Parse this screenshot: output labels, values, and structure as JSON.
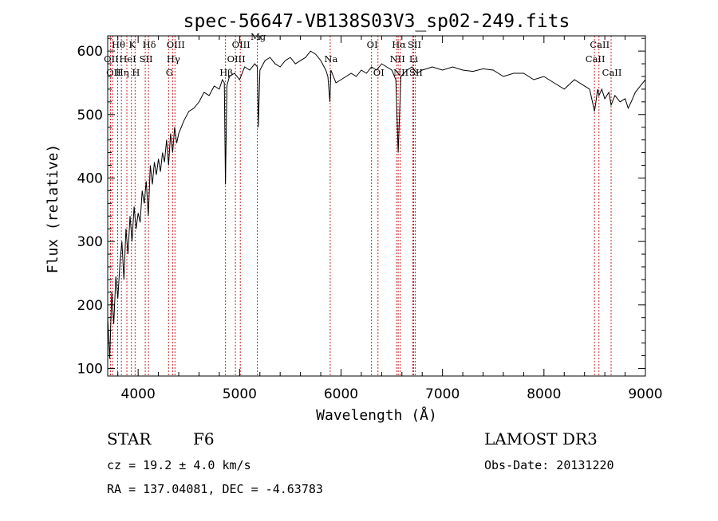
{
  "chart_data": {
    "type": "line",
    "title": "spec-56647-VB138S03V3_sp02-249.fits",
    "xlabel": "Wavelength (Å)",
    "ylabel": "Flux (relative)",
    "xlim": [
      3700,
      9000
    ],
    "ylim": [
      88,
      624
    ],
    "x_ticks": [
      4000,
      5000,
      6000,
      7000,
      8000,
      9000
    ],
    "y_ticks": [
      100,
      200,
      300,
      400,
      500,
      600
    ],
    "grid": false,
    "line_color": "#000000",
    "marker_color": "#c8262a",
    "series": [
      {
        "x": [
          3700,
          3720,
          3740,
          3760,
          3780,
          3800,
          3820,
          3840,
          3860,
          3880,
          3900,
          3920,
          3940,
          3960,
          3980,
          4000,
          4020,
          4040,
          4060,
          4080,
          4100,
          4120,
          4140,
          4160,
          4180,
          4200,
          4220,
          4240,
          4260,
          4280,
          4300,
          4320,
          4340,
          4360,
          4380,
          4400,
          4450,
          4500,
          4550,
          4600,
          4650,
          4700,
          4750,
          4800,
          4830,
          4850,
          4861,
          4875,
          4900,
          4950,
          5000,
          5050,
          5100,
          5150,
          5175,
          5185,
          5200,
          5250,
          5300,
          5350,
          5400,
          5450,
          5500,
          5550,
          5600,
          5650,
          5700,
          5750,
          5800,
          5850,
          5870,
          5890,
          5900,
          5950,
          6000,
          6050,
          6100,
          6150,
          6200,
          6250,
          6300,
          6350,
          6400,
          6450,
          6500,
          6540,
          6563,
          6590,
          6620,
          6650,
          6700,
          6750,
          6800,
          6900,
          7000,
          7100,
          7200,
          7300,
          7400,
          7500,
          7600,
          7700,
          7800,
          7900,
          8000,
          8100,
          8200,
          8300,
          8400,
          8450,
          8498,
          8530,
          8542,
          8570,
          8600,
          8640,
          8662,
          8700,
          8750,
          8800,
          8830,
          8860,
          8900,
          8950,
          9000
        ],
        "y": [
          180,
          115,
          220,
          170,
          245,
          210,
          265,
          300,
          240,
          320,
          280,
          340,
          300,
          355,
          320,
          345,
          330,
          380,
          360,
          395,
          340,
          420,
          390,
          425,
          405,
          430,
          410,
          440,
          425,
          460,
          420,
          470,
          440,
          480,
          455,
          470,
          490,
          505,
          510,
          520,
          535,
          530,
          545,
          540,
          555,
          550,
          390,
          545,
          560,
          565,
          555,
          575,
          570,
          580,
          575,
          480,
          570,
          585,
          590,
          580,
          575,
          585,
          590,
          580,
          585,
          590,
          600,
          595,
          585,
          570,
          560,
          520,
          570,
          550,
          555,
          560,
          565,
          560,
          570,
          565,
          575,
          570,
          580,
          575,
          570,
          555,
          440,
          560,
          565,
          570,
          575,
          565,
          570,
          575,
          570,
          575,
          570,
          568,
          572,
          570,
          560,
          565,
          565,
          555,
          560,
          550,
          540,
          555,
          545,
          540,
          505,
          540,
          530,
          540,
          525,
          535,
          515,
          530,
          520,
          525,
          510,
          520,
          535,
          545,
          555
        ]
      }
    ],
    "spectral_lines": [
      {
        "wl": 3727,
        "label": "OII",
        "row": 2
      },
      {
        "wl": 3750,
        "label": "OII",
        "row": 3
      },
      {
        "wl": 3798,
        "label": "Hθ",
        "row": 1
      },
      {
        "wl": 3835,
        "label": "Hη",
        "row": 3
      },
      {
        "wl": 3889,
        "label": "HeI",
        "row": 2
      },
      {
        "wl": 3934,
        "label": "K",
        "row": 1
      },
      {
        "wl": 3970,
        "label": "H",
        "row": 3
      },
      {
        "wl": 4070,
        "label": "SII",
        "row": 2
      },
      {
        "wl": 4102,
        "label": "Hδ",
        "row": 1
      },
      {
        "wl": 4300,
        "label": "G",
        "row": 3
      },
      {
        "wl": 4340,
        "label": "Hγ",
        "row": 2
      },
      {
        "wl": 4363,
        "label": "OIII",
        "row": 1
      },
      {
        "wl": 4861,
        "label": "Hβ",
        "row": 3
      },
      {
        "wl": 4959,
        "label": "OIII",
        "row": 2
      },
      {
        "wl": 5007,
        "label": "OIII",
        "row": 1
      },
      {
        "wl": 5175,
        "label": "Mg",
        "row": 0
      },
      {
        "wl": 5893,
        "label": "Na",
        "row": 2
      },
      {
        "wl": 6300,
        "label": "OI",
        "row": 1
      },
      {
        "wl": 6364,
        "label": "OI",
        "row": 3
      },
      {
        "wl": 6548,
        "label": "NII",
        "row": 2
      },
      {
        "wl": 6563,
        "label": "Hα",
        "row": 1
      },
      {
        "wl": 6583,
        "label": "NII",
        "row": 3
      },
      {
        "wl": 6708,
        "label": "Li",
        "row": 2
      },
      {
        "wl": 6716,
        "label": "SII",
        "row": 1
      },
      {
        "wl": 6731,
        "label": "SII",
        "row": 3
      },
      {
        "wl": 8498,
        "label": "CaII",
        "row": 2
      },
      {
        "wl": 8542,
        "label": "CaII",
        "row": 1
      },
      {
        "wl": 8662,
        "label": "CaII",
        "row": 3
      }
    ]
  },
  "info": {
    "object_class": "STAR",
    "subclass": "F6",
    "survey": "LAMOST DR3",
    "redshift": "cz = 19.2 ± 4.0 km/s",
    "obs_date": "Obs-Date: 20131220",
    "coords": "RA = 137.04081, DEC =  -4.63783"
  }
}
